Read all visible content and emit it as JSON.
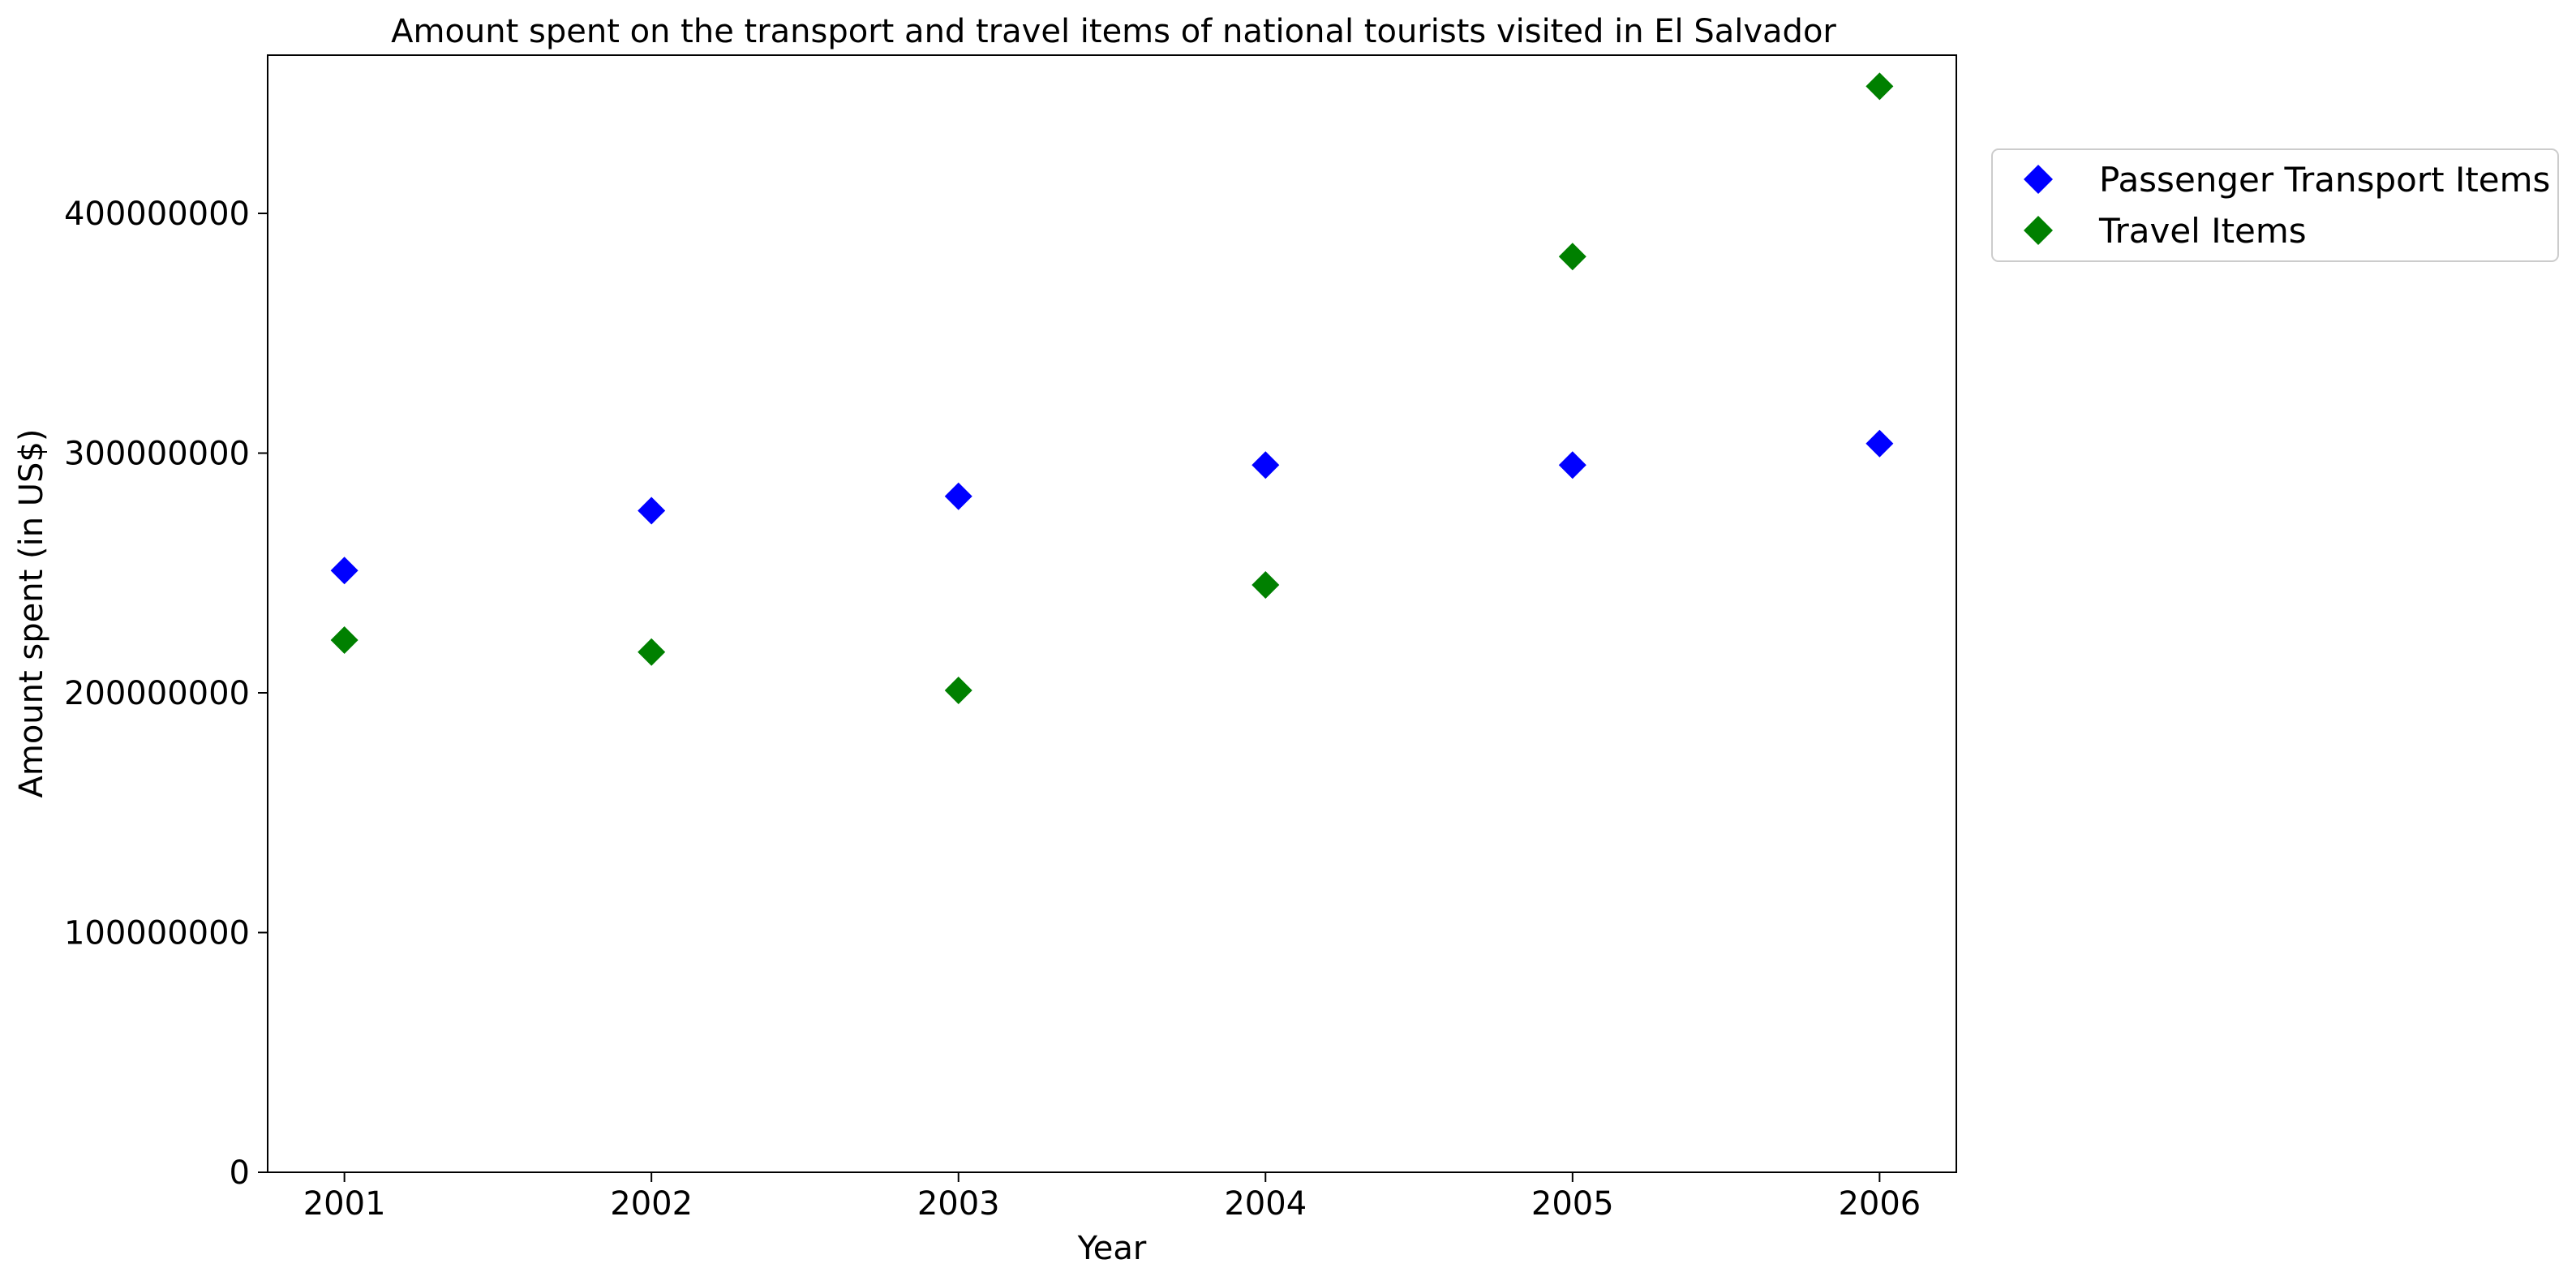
{
  "chart_data": {
    "type": "scatter",
    "title": "Amount spent on the transport and travel items of national tourists visited in El Salvador",
    "xlabel": "Year",
    "ylabel": "Amount spent (in US$)",
    "x": [
      "2001",
      "2002",
      "2003",
      "2004",
      "2005",
      "2006"
    ],
    "xlim": [
      2000.75,
      2006.25
    ],
    "ylim": [
      0,
      466000000
    ],
    "yticks": [
      {
        "value": 0,
        "label": "0"
      },
      {
        "value": 100000000,
        "label": "100000000"
      },
      {
        "value": 200000000,
        "label": "200000000"
      },
      {
        "value": 300000000,
        "label": "300000000"
      },
      {
        "value": 400000000,
        "label": "400000000"
      }
    ],
    "grid": false,
    "legend_position": "outside-top-right",
    "marker": "diamond",
    "series": [
      {
        "name": "Passenger Transport Items",
        "color": "#0000ff",
        "values": [
          251000000,
          276000000,
          282000000,
          295000000,
          295000000,
          304000000
        ]
      },
      {
        "name": "Travel Items",
        "color": "#008000",
        "values": [
          222000000,
          217000000,
          201000000,
          245000000,
          382000000,
          453000000
        ]
      }
    ]
  }
}
